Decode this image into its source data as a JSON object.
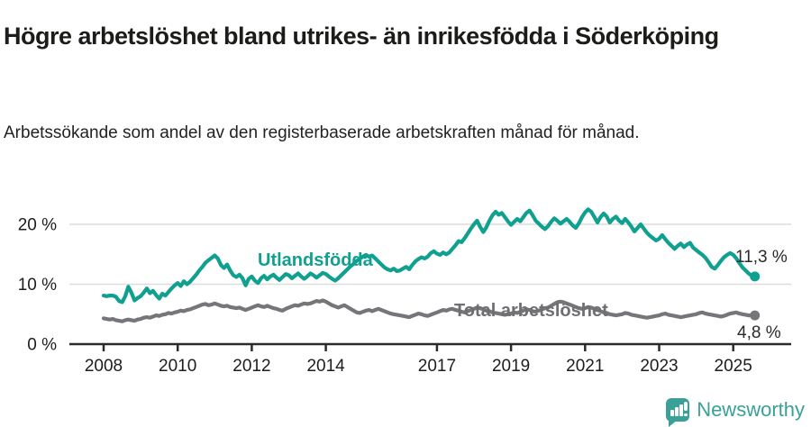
{
  "header": {
    "title": "Högre arbetslöshet bland utrikes- än inrikesfödda i Söderköping",
    "subtitle": "Arbetssökande som andel av den registerbaserade arbetskraften månad för månad."
  },
  "footer": {
    "brand": "Newsworthy",
    "logo_icon": "speech-bubble-bar-chart-exclamation-icon"
  },
  "chart_data": {
    "type": "line",
    "unit": "%",
    "x_start": "2008-01",
    "x_end": "2025-08",
    "x_ticks": [
      "2008",
      "2010",
      "2012",
      "2014",
      "2017",
      "2019",
      "2021",
      "2023",
      "2025"
    ],
    "y_ticks": [
      {
        "value": 0,
        "label": "0 %"
      },
      {
        "value": 10,
        "label": "10 %"
      },
      {
        "value": 20,
        "label": "20 %"
      }
    ],
    "ylim": [
      0,
      23.5
    ],
    "grid": "horizontal",
    "legend_position": "inline-labels",
    "series": [
      {
        "name": "Utlandsfödda",
        "color": "#10a090",
        "end_label": "11,3 %",
        "end_value": 11.3,
        "values": [
          8.1,
          8.0,
          8.1,
          8.1,
          7.9,
          7.2,
          7.0,
          8.0,
          9.6,
          8.6,
          7.3,
          7.7,
          8.0,
          8.6,
          9.3,
          8.5,
          8.9,
          8.2,
          7.6,
          8.4,
          8.1,
          8.7,
          9.3,
          9.8,
          10.2,
          9.7,
          10.5,
          10.0,
          10.4,
          11.0,
          11.6,
          12.3,
          12.9,
          13.6,
          14.0,
          14.4,
          14.8,
          14.3,
          13.2,
          12.7,
          13.3,
          12.3,
          11.5,
          11.2,
          11.6,
          11.0,
          9.8,
          10.9,
          11.3,
          10.6,
          10.2,
          11.0,
          11.4,
          10.8,
          11.3,
          11.6,
          11.1,
          10.7,
          11.2,
          11.7,
          11.5,
          11.0,
          11.4,
          11.8,
          11.3,
          10.9,
          11.3,
          11.8,
          11.5,
          11.1,
          11.5,
          11.9,
          11.7,
          11.3,
          10.9,
          10.6,
          11.0,
          11.5,
          12.0,
          12.5,
          13.0,
          13.4,
          13.9,
          14.3,
          14.6,
          14.9,
          14.6,
          14.8,
          14.3,
          13.8,
          13.3,
          12.8,
          12.5,
          12.3,
          12.6,
          12.2,
          12.3,
          12.6,
          12.9,
          12.5,
          13.2,
          13.8,
          14.2,
          14.5,
          14.3,
          14.6,
          15.2,
          15.5,
          15.1,
          14.9,
          15.3,
          15.0,
          15.3,
          15.9,
          16.5,
          17.2,
          17.0,
          17.7,
          18.5,
          19.3,
          20.0,
          20.6,
          19.6,
          18.7,
          19.5,
          20.6,
          21.5,
          22.1,
          21.6,
          21.9,
          21.2,
          20.5,
          19.9,
          20.4,
          20.9,
          20.5,
          21.2,
          21.9,
          22.3,
          21.5,
          20.6,
          20.1,
          19.6,
          19.2,
          19.7,
          20.4,
          21.0,
          20.6,
          20.1,
          20.5,
          20.9,
          20.4,
          19.8,
          19.4,
          20.2,
          21.2,
          22.0,
          22.5,
          22.1,
          21.2,
          20.3,
          21.2,
          21.8,
          21.3,
          20.3,
          20.9,
          21.3,
          20.6,
          20.2,
          20.9,
          20.3,
          19.6,
          18.8,
          19.4,
          20.0,
          19.3,
          18.6,
          18.1,
          17.7,
          17.3,
          17.6,
          18.2,
          17.5,
          16.9,
          16.4,
          15.9,
          16.4,
          16.8,
          16.2,
          16.6,
          16.9,
          16.1,
          15.7,
          15.3,
          14.9,
          14.4,
          13.7,
          12.9,
          12.6,
          13.2,
          13.9,
          14.5,
          14.9,
          15.2,
          14.9,
          14.3,
          13.5,
          12.8,
          12.3,
          11.8,
          11.4,
          11.3
        ]
      },
      {
        "name": "Total arbetslöshet",
        "color": "#76767a",
        "end_label": "4,8 %",
        "end_value": 4.8,
        "values": [
          4.3,
          4.2,
          4.1,
          4.2,
          4.0,
          3.9,
          3.8,
          4.0,
          4.1,
          4.0,
          3.9,
          4.1,
          4.2,
          4.4,
          4.5,
          4.4,
          4.6,
          4.8,
          4.7,
          4.9,
          5.0,
          5.2,
          5.1,
          5.3,
          5.4,
          5.6,
          5.5,
          5.7,
          5.8,
          6.0,
          6.2,
          6.4,
          6.6,
          6.7,
          6.5,
          6.6,
          6.8,
          6.6,
          6.4,
          6.3,
          6.4,
          6.2,
          6.1,
          6.0,
          6.1,
          5.9,
          5.7,
          5.9,
          6.1,
          6.3,
          6.5,
          6.3,
          6.2,
          6.4,
          6.2,
          6.0,
          5.9,
          5.7,
          5.6,
          5.9,
          6.1,
          6.3,
          6.5,
          6.4,
          6.6,
          6.8,
          6.7,
          6.8,
          7.0,
          7.2,
          7.1,
          7.3,
          7.1,
          6.8,
          6.5,
          6.3,
          6.1,
          6.3,
          6.5,
          6.2,
          5.9,
          5.6,
          5.3,
          5.2,
          5.4,
          5.6,
          5.7,
          5.5,
          5.7,
          5.9,
          5.7,
          5.5,
          5.3,
          5.1,
          5.0,
          4.9,
          4.8,
          4.7,
          4.6,
          4.5,
          4.7,
          4.9,
          5.1,
          5.0,
          4.8,
          4.7,
          4.9,
          5.1,
          5.3,
          5.5,
          5.7,
          5.6,
          5.8,
          5.9,
          5.7,
          5.6,
          5.4,
          5.3,
          5.5,
          5.7,
          5.9,
          6.1,
          6.0,
          5.8,
          5.6,
          5.5,
          5.3,
          5.2,
          5.1,
          5.0,
          4.9,
          5.0,
          5.1,
          5.3,
          5.2,
          5.4,
          5.6,
          5.8,
          5.7,
          5.5,
          5.4,
          5.6,
          5.8,
          6.0,
          6.1,
          6.4,
          6.7,
          7.0,
          7.1,
          7.0,
          6.8,
          6.6,
          6.4,
          6.2,
          6.0,
          5.9,
          6.0,
          6.2,
          6.1,
          5.9,
          5.7,
          5.5,
          5.3,
          5.2,
          5.0,
          4.9,
          4.8,
          4.9,
          5.0,
          5.2,
          5.1,
          4.9,
          4.8,
          4.7,
          4.6,
          4.5,
          4.4,
          4.5,
          4.6,
          4.7,
          4.8,
          5.0,
          5.1,
          4.9,
          4.8,
          4.7,
          4.6,
          4.5,
          4.6,
          4.7,
          4.8,
          4.9,
          5.0,
          5.2,
          5.3,
          5.1,
          5.0,
          4.9,
          4.8,
          4.7,
          4.6,
          4.7,
          4.9,
          5.1,
          5.2,
          5.3,
          5.1,
          5.0,
          4.9,
          4.8,
          4.8,
          4.8
        ]
      }
    ]
  }
}
